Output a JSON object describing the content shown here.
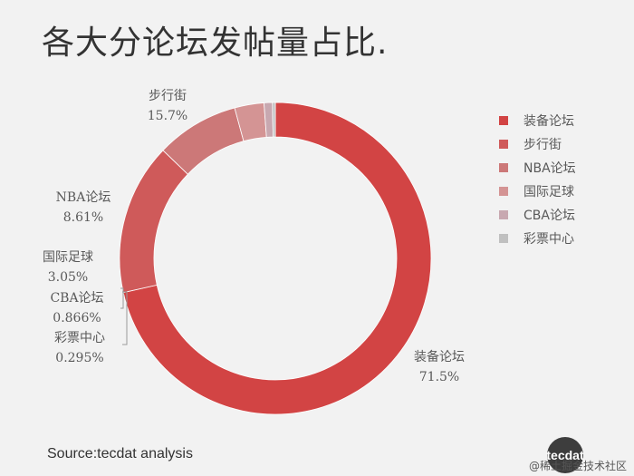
{
  "title": "各大分论坛发帖量占比.",
  "source": "Source:tecdat analysis",
  "watermark": {
    "logo_text": "tecdat",
    "credit": "@稀土掘金技术社区"
  },
  "colors": {
    "background": "#f2f2f2",
    "slices": [
      "#d24444",
      "#cf5a5a",
      "#cc7878",
      "#d49494",
      "#c8a8b0",
      "#c0c0c0"
    ]
  },
  "chart_data": {
    "type": "pie",
    "donut": true,
    "categories": [
      "装备论坛",
      "步行街",
      "NBA论坛",
      "国际足球",
      "CBA论坛",
      "彩票中心"
    ],
    "values": [
      71.5,
      15.7,
      8.61,
      3.05,
      0.866,
      0.295
    ],
    "value_labels": [
      "71.5%",
      "15.7%",
      "8.61%",
      "3.05%",
      "0.866%",
      "0.295%"
    ],
    "legend": "right"
  }
}
